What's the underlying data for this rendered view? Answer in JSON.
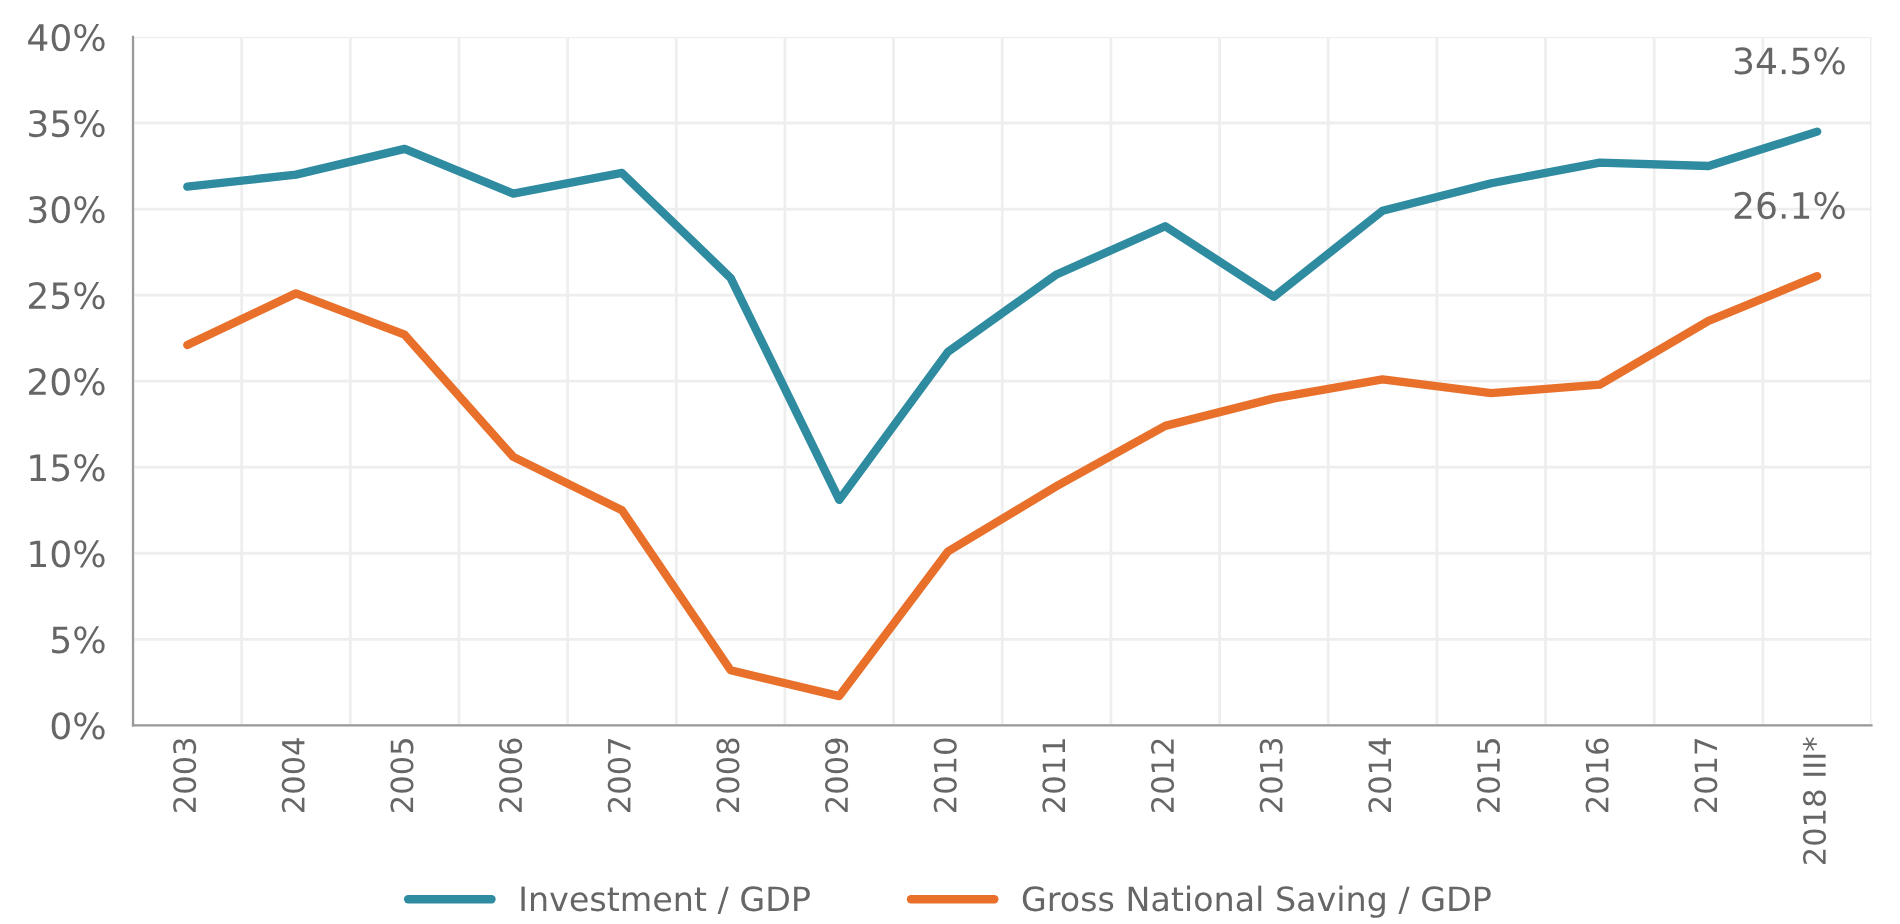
{
  "chart_data": {
    "type": "line",
    "categories": [
      "2003",
      "2004",
      "2005",
      "2006",
      "2007",
      "2008",
      "2009",
      "2010",
      "2011",
      "2012",
      "2013",
      "2014",
      "2015",
      "2016",
      "2017",
      "2018 III*"
    ],
    "series": [
      {
        "name": "Investment / GDP",
        "color": "#2e8ba0",
        "values": [
          31.3,
          32.0,
          33.5,
          30.9,
          32.1,
          26.0,
          13.1,
          21.7,
          26.2,
          29.0,
          24.9,
          29.9,
          31.5,
          32.7,
          32.5,
          34.5
        ]
      },
      {
        "name": "Gross National Saving / GDP",
        "color": "#e8702a",
        "values": [
          22.1,
          25.1,
          22.7,
          15.6,
          12.5,
          3.2,
          1.7,
          10.1,
          13.9,
          17.4,
          19.0,
          20.1,
          19.3,
          19.8,
          23.5,
          26.1
        ]
      }
    ],
    "ylim": [
      0,
      40
    ],
    "yticks": [
      {
        "value": 0,
        "label": "0%"
      },
      {
        "value": 5,
        "label": "5%"
      },
      {
        "value": 10,
        "label": "10%"
      },
      {
        "value": 15,
        "label": "15%"
      },
      {
        "value": 20,
        "label": "20%"
      },
      {
        "value": 25,
        "label": "25%"
      },
      {
        "value": 30,
        "label": "30%"
      },
      {
        "value": 35,
        "label": "35%"
      },
      {
        "value": 40,
        "label": "40%"
      }
    ],
    "annotations": [
      {
        "text": "34.5%",
        "x": "2018 III*",
        "y": 34.5
      },
      {
        "text": "26.1%",
        "x": "2018 III*",
        "y": 26.1
      }
    ],
    "grid": true,
    "legend": "bottom",
    "marker": "none",
    "line_style": "solid"
  }
}
